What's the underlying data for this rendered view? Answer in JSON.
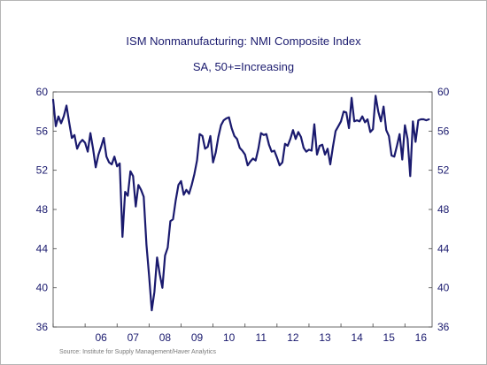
{
  "chart_data": {
    "type": "line",
    "title": "ISM Nonmanufacturing: NMI Composite Index",
    "subtitle": "SA, 50+=Increasing",
    "source": "Source: Institute for Supply Management/Haver Analytics",
    "ylim": [
      36,
      60
    ],
    "yticks": [
      36,
      40,
      44,
      48,
      52,
      56,
      60
    ],
    "yticks_right": [
      36,
      40,
      44,
      48,
      52,
      56,
      60
    ],
    "xlim": [
      2005.0,
      2016.85
    ],
    "year_labels": [
      "06",
      "07",
      "08",
      "09",
      "10",
      "11",
      "12",
      "13",
      "14",
      "15",
      "16"
    ],
    "grid": false,
    "line_color": "#1a1a6e",
    "series": [
      {
        "x": [
          2005.0,
          2005.083,
          2005.167,
          2005.25,
          2005.333,
          2005.417,
          2005.5,
          2005.583,
          2005.667,
          2005.75,
          2005.833,
          2005.917,
          2006.0,
          2006.083,
          2006.167,
          2006.25,
          2006.333,
          2006.417,
          2006.5,
          2006.583,
          2006.667,
          2006.75,
          2006.833,
          2006.917,
          2007.0,
          2007.083,
          2007.167,
          2007.25,
          2007.333,
          2007.417,
          2007.5,
          2007.583,
          2007.667,
          2007.75,
          2007.833,
          2007.917,
          2008.0,
          2008.083,
          2008.167,
          2008.25,
          2008.333,
          2008.417,
          2008.5,
          2008.583,
          2008.667,
          2008.75,
          2008.833,
          2008.917,
          2009.0,
          2009.083,
          2009.167,
          2009.25,
          2009.333,
          2009.417,
          2009.5,
          2009.583,
          2009.667,
          2009.75,
          2009.833,
          2009.917,
          2010.0,
          2010.083,
          2010.167,
          2010.25,
          2010.333,
          2010.417,
          2010.5,
          2010.583,
          2010.667,
          2010.75,
          2010.833,
          2010.917,
          2011.0,
          2011.083,
          2011.167,
          2011.25,
          2011.333,
          2011.417,
          2011.5,
          2011.583,
          2011.667,
          2011.75,
          2011.833,
          2011.917,
          2012.0,
          2012.083,
          2012.167,
          2012.25,
          2012.333,
          2012.417,
          2012.5,
          2012.583,
          2012.667,
          2012.75,
          2012.833,
          2012.917,
          2013.0,
          2013.083,
          2013.167,
          2013.25,
          2013.333,
          2013.417,
          2013.5,
          2013.583,
          2013.667,
          2013.75,
          2013.833,
          2013.917,
          2014.0,
          2014.083,
          2014.167,
          2014.25,
          2014.333,
          2014.417,
          2014.5,
          2014.583,
          2014.667,
          2014.75,
          2014.833,
          2014.917,
          2015.0,
          2015.083,
          2015.167,
          2015.25,
          2015.333,
          2015.417,
          2015.5,
          2015.583,
          2015.667,
          2015.75,
          2015.833,
          2015.917,
          2016.0,
          2016.083,
          2016.167,
          2016.25,
          2016.333,
          2016.417,
          2016.5,
          2016.583,
          2016.667,
          2016.75
        ],
        "values": [
          59.2,
          56.5,
          57.5,
          56.8,
          57.5,
          58.6,
          56.9,
          55.3,
          55.6,
          54.2,
          54.8,
          55.1,
          54.8,
          53.9,
          55.8,
          54.2,
          52.3,
          53.6,
          54.4,
          55.3,
          53.4,
          52.8,
          52.6,
          53.4,
          52.4,
          52.7,
          45.2,
          49.8,
          49.4,
          51.9,
          51.4,
          48.3,
          50.5,
          50.0,
          49.3,
          44.4,
          41.2,
          37.7,
          39.6,
          43.1,
          41.4,
          40.0,
          43.3,
          44.1,
          46.8,
          47.0,
          48.9,
          50.5,
          50.9,
          49.5,
          50.0,
          49.6,
          50.5,
          51.6,
          53.0,
          55.7,
          55.5,
          54.2,
          54.4,
          55.5,
          52.8,
          53.8,
          55.4,
          56.6,
          57.1,
          57.3,
          57.4,
          56.3,
          55.5,
          55.2,
          54.3,
          54.0,
          53.6,
          52.5,
          52.9,
          53.2,
          53.0,
          54.2,
          55.8,
          55.6,
          55.7,
          54.6,
          53.9,
          54.0,
          53.3,
          52.5,
          52.8,
          54.7,
          54.5,
          55.2,
          56.1,
          55.2,
          55.9,
          55.4,
          54.3,
          53.9,
          54.1,
          54.0,
          56.7,
          53.6,
          54.5,
          54.6,
          53.6,
          54.2,
          52.6,
          54.4,
          56.0,
          56.5,
          57.0,
          58.0,
          57.9,
          56.3,
          59.4,
          57.0,
          57.1,
          57.0,
          57.5,
          56.9,
          57.2,
          55.9,
          56.2,
          59.6,
          58.0,
          57.0,
          58.5,
          56.1,
          55.5,
          53.5,
          53.4,
          54.5,
          55.7,
          53.1,
          56.6,
          55.2,
          51.4,
          57.0,
          54.9,
          57.1,
          57.2,
          57.2,
          57.1,
          57.2
        ]
      }
    ]
  }
}
